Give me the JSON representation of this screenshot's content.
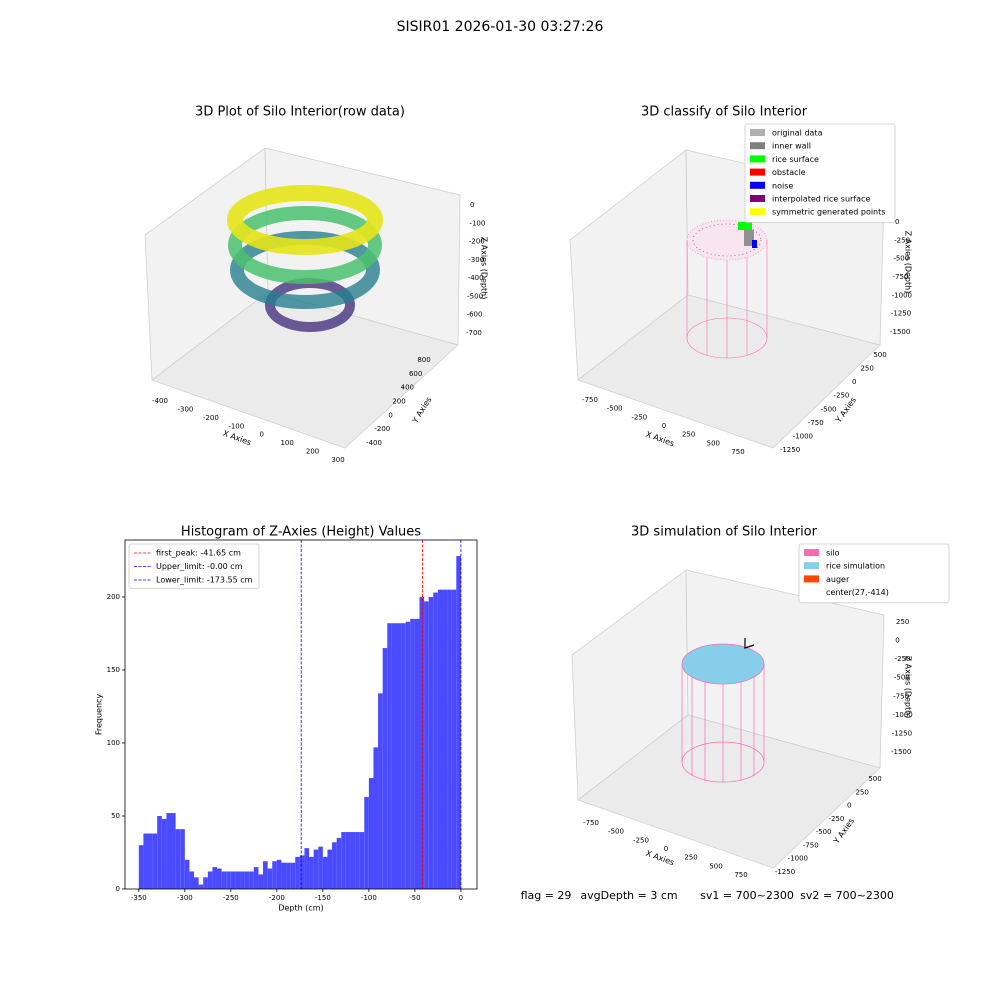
{
  "title": "SISIR01 2026-01-30 03:27:26",
  "chart_data": [
    {
      "type": "scatter3d",
      "title": "3D Plot of Silo Interior(row data)",
      "x_label": "X Axies",
      "y_label": "Y Axies",
      "z_label": "Z Axies (Depth)",
      "xticks": [
        -400,
        -300,
        -200,
        -100,
        0,
        100,
        200,
        300
      ],
      "yticks": [
        -400,
        -200,
        0,
        200,
        400,
        600,
        800
      ],
      "zticks": [
        0,
        -100,
        -200,
        -300,
        -400,
        -500,
        -600,
        -700
      ]
    },
    {
      "type": "scatter3d",
      "title": "3D classify of Silo Interior",
      "x_label": "X Axies",
      "y_label": "Y Axies",
      "z_label": "Z Axies (Depth)",
      "xticks": [
        -750,
        -500,
        -250,
        0,
        250,
        500,
        750
      ],
      "yticks": [
        -1250,
        -1000,
        -750,
        -500,
        -250,
        0,
        250,
        500
      ],
      "zticks": [
        0,
        -250,
        -500,
        -750,
        -1000,
        -1250,
        -1500
      ],
      "legend": [
        {
          "name": "original data",
          "color": "#b0b0b0"
        },
        {
          "name": "inner wall",
          "color": "#808080"
        },
        {
          "name": "rice surface",
          "color": "#00ff00"
        },
        {
          "name": "obstacle",
          "color": "#ff0000"
        },
        {
          "name": "noise",
          "color": "#0000ff"
        },
        {
          "name": "interpolated rice surface",
          "color": "#800080"
        },
        {
          "name": "symmetric generated points",
          "color": "#ffff00"
        }
      ]
    },
    {
      "type": "histogram",
      "title": "Histogram of Z-Axies (Height) Values",
      "x_label": "Depth (cm)",
      "y_label": "Frequency",
      "color": "#4a4aff",
      "bins": [
        -350,
        -345,
        -340,
        -335,
        -330,
        -325,
        -320,
        -315,
        -310,
        -305,
        -300,
        -295,
        -290,
        -285,
        -280,
        -275,
        -270,
        -265,
        -260,
        -255,
        -250,
        -245,
        -240,
        -235,
        -230,
        -225,
        -220,
        -215,
        -210,
        -205,
        -200,
        -195,
        -190,
        -185,
        -180,
        -175,
        -170,
        -165,
        -160,
        -155,
        -150,
        -145,
        -140,
        -135,
        -130,
        -125,
        -120,
        -115,
        -110,
        -105,
        -100,
        -95,
        -90,
        -85,
        -80,
        -75,
        -70,
        -65,
        -60,
        -55,
        -50,
        -45,
        -40,
        -35,
        -30,
        -25,
        -20,
        -15,
        -10,
        -5,
        0
      ],
      "values": [
        30,
        38,
        38,
        38,
        50,
        48,
        52,
        52,
        41,
        41,
        20,
        12,
        8,
        3,
        8,
        12,
        15,
        14,
        12,
        12,
        12,
        12,
        12,
        12,
        12,
        15,
        10,
        19,
        14,
        19,
        20,
        18,
        18,
        18,
        22,
        23,
        28,
        22,
        27,
        29,
        22,
        27,
        32,
        35,
        39,
        39,
        39,
        39,
        39,
        63,
        76,
        97,
        134,
        165,
        182,
        182,
        182,
        182,
        183,
        185,
        185,
        200,
        197,
        200,
        203,
        205,
        205,
        205,
        205,
        228
      ],
      "xlim": [
        -365,
        17.5
      ],
      "ylim": [
        0,
        239
      ],
      "xticks": [
        -350,
        -300,
        -250,
        -200,
        -150,
        -100,
        -50,
        0
      ],
      "yticks": [
        0,
        50,
        100,
        150,
        200
      ],
      "vlines": [
        {
          "name": "first_peak: -41.65 cm",
          "value": -41.65,
          "color": "#ff0000"
        },
        {
          "name": "Upper_limit: -0.00 cm",
          "value": -0.0,
          "color": "#0000ff"
        },
        {
          "name": "Lower_limit: -173.55 cm",
          "value": -173.55,
          "color": "#0000ff"
        }
      ],
      "legend_position": "upper left"
    },
    {
      "type": "scatter3d",
      "title": "3D simulation of Silo Interior",
      "x_label": "X Axies",
      "y_label": "Y Axies",
      "z_label": "Z Axies (Depth)",
      "xticks": [
        -750,
        -500,
        -250,
        0,
        250,
        500,
        750
      ],
      "yticks": [
        -1250,
        -1000,
        -750,
        -500,
        -250,
        0,
        250,
        500
      ],
      "zticks": [
        250,
        0,
        -250,
        -500,
        -750,
        -1000,
        -1250,
        -1500
      ],
      "legend": [
        {
          "name": "silo",
          "color": "#ff69b4"
        },
        {
          "name": "rice simulation",
          "color": "#87ceeb"
        },
        {
          "name": "auger",
          "color": "#ff4500"
        },
        {
          "name": "center(27,-414)",
          "color": null
        }
      ]
    }
  ],
  "footer": [
    "flag = 29",
    "avgDepth = 3 cm",
    "sv1 = 700~2300",
    "sv2 = 700~2300"
  ]
}
